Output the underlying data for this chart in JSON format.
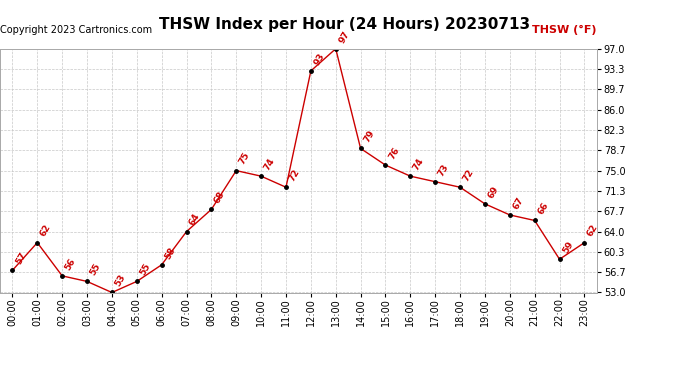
{
  "title": "THSW Index per Hour (24 Hours) 20230713",
  "copyright": "Copyright 2023 Cartronics.com",
  "legend_label": "THSW (°F)",
  "hours": [
    "00:00",
    "01:00",
    "02:00",
    "03:00",
    "04:00",
    "05:00",
    "06:00",
    "07:00",
    "08:00",
    "09:00",
    "10:00",
    "11:00",
    "12:00",
    "13:00",
    "14:00",
    "15:00",
    "16:00",
    "17:00",
    "18:00",
    "19:00",
    "20:00",
    "21:00",
    "22:00",
    "23:00"
  ],
  "values": [
    57,
    62,
    56,
    55,
    53,
    55,
    58,
    64,
    68,
    75,
    74,
    72,
    93,
    97,
    79,
    76,
    74,
    73,
    72,
    69,
    67,
    66,
    59,
    62
  ],
  "yticks": [
    53.0,
    56.7,
    60.3,
    64.0,
    67.7,
    71.3,
    75.0,
    78.7,
    82.3,
    86.0,
    89.7,
    93.3,
    97.0
  ],
  "ylim": [
    53.0,
    97.0
  ],
  "line_color": "#cc0000",
  "dot_color": "#000000",
  "label_color": "#cc0000",
  "grid_color": "#c8c8c8",
  "title_fontsize": 11,
  "copyright_fontsize": 7,
  "legend_fontsize": 8,
  "label_fontsize": 6.5,
  "tick_fontsize": 7,
  "background_color": "#ffffff"
}
